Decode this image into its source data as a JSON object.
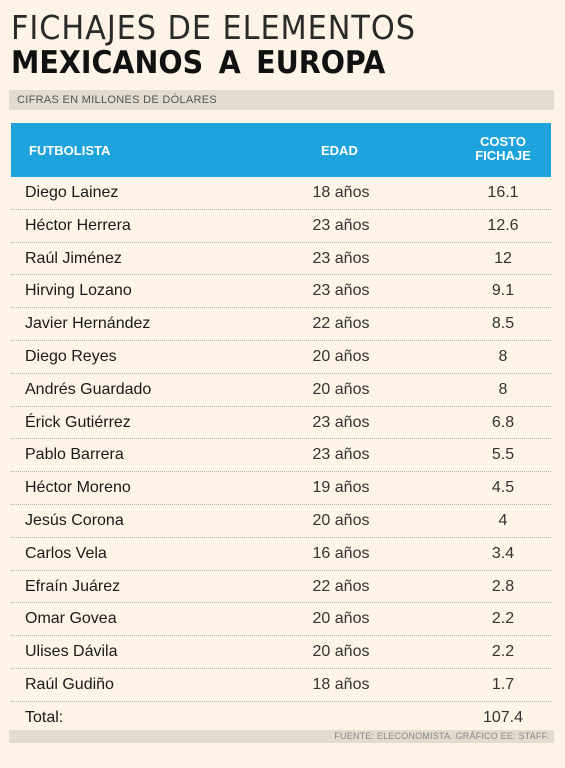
{
  "title_line1": "FICHAJES DE ELEMENTOS",
  "title_line2": "MEXICANOS  A EUROPA",
  "subtitle": "CIFRAS EN MILLONES DE DÓLARES",
  "headers": {
    "player": "FUTBOLISTA",
    "age": "EDAD",
    "cost_line1": "COSTO",
    "cost_line2": "FICHAJE"
  },
  "rows": [
    {
      "name": "Diego Lainez",
      "age": "18 años",
      "cost": "16.1"
    },
    {
      "name": "Héctor Herrera",
      "age": "23 años",
      "cost": "12.6"
    },
    {
      "name": "Raúl Jiménez",
      "age": "23 años",
      "cost": "12"
    },
    {
      "name": "Hirving Lozano",
      "age": "23 años",
      "cost": "9.1"
    },
    {
      "name": "Javier Hernández",
      "age": "22 años",
      "cost": "8.5"
    },
    {
      "name": "Diego Reyes",
      "age": "20 años",
      "cost": "8"
    },
    {
      "name": "Andrés Guardado",
      "age": "20 años",
      "cost": "8"
    },
    {
      "name": "Érick Gutiérrez",
      "age": "23 años",
      "cost": "6.8"
    },
    {
      "name": "Pablo Barrera",
      "age": "23 años",
      "cost": "5.5"
    },
    {
      "name": "Héctor Moreno",
      "age": "19 años",
      "cost": "4.5"
    },
    {
      "name": "Jesús Corona",
      "age": "20 años",
      "cost": "4"
    },
    {
      "name": "Carlos Vela",
      "age": "16 años",
      "cost": "3.4"
    },
    {
      "name": "Efraín Juárez",
      "age": "22 años",
      "cost": "2.8"
    },
    {
      "name": "Omar Govea",
      "age": "20 años",
      "cost": "2.2"
    },
    {
      "name": "Ulises Dávila",
      "age": "20 años",
      "cost": "2.2"
    },
    {
      "name": "Raúl Gudiño",
      "age": "18 años",
      "cost": "1.7"
    }
  ],
  "total": {
    "label": "Total:",
    "value": "107.4"
  },
  "source": "FUENTE: ELECONOMISTA. GRÁFICO EE: STAFF.",
  "colors": {
    "header_bg": "#1fa3dc",
    "page_bg": "#fdf4e7",
    "band_bg": "#e2dbd0"
  },
  "chart_data": {
    "type": "table",
    "title": "FICHAJES DE ELEMENTOS MEXICANOS  A EUROPA",
    "subtitle": "CIFRAS EN MILLONES DE DÓLARES",
    "columns": [
      "FUTBOLISTA",
      "EDAD",
      "COSTO FICHAJE"
    ],
    "categories": [
      "Diego Lainez",
      "Héctor Herrera",
      "Raúl Jiménez",
      "Hirving Lozano",
      "Javier Hernández",
      "Diego Reyes",
      "Andrés Guardado",
      "Érick Gutiérrez",
      "Pablo Barrera",
      "Héctor Moreno",
      "Jesús Corona",
      "Carlos Vela",
      "Efraín Juárez",
      "Omar Govea",
      "Ulises Dávila",
      "Raúl Gudiño"
    ],
    "ages": [
      18,
      23,
      23,
      23,
      22,
      20,
      20,
      23,
      23,
      19,
      20,
      16,
      22,
      20,
      20,
      18
    ],
    "values": [
      16.1,
      12.6,
      12,
      9.1,
      8.5,
      8,
      8,
      6.8,
      5.5,
      4.5,
      4,
      3.4,
      2.8,
      2.2,
      2.2,
      1.7
    ],
    "total": 107.4
  }
}
